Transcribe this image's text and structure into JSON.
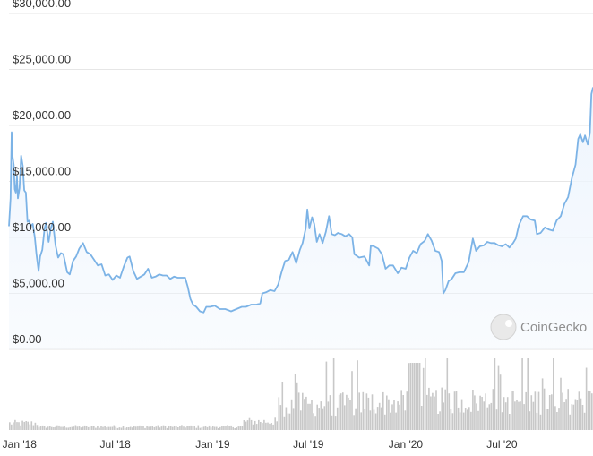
{
  "chart_data": {
    "type": "area",
    "title": "",
    "xlabel": "",
    "ylabel": "",
    "x_tick_labels": [
      "Jan '18",
      "Jul '18",
      "Jan '19",
      "Jul '19",
      "Jan '20",
      "Jul '20"
    ],
    "y_tick_labels": [
      "$0.00",
      "$5,000.00",
      "$10,000.00",
      "$15,000.00",
      "$20,000.00",
      "$25,000.00",
      "$30,000.00"
    ],
    "y_ticks": [
      0,
      5000,
      10000,
      15000,
      20000,
      25000,
      30000
    ],
    "ylim": [
      0,
      30000
    ],
    "xlim": [
      "2017-12-12",
      "2020-12-20"
    ],
    "grid": true,
    "line_color": "#7cb3e6",
    "fill_color": "#eef5fd",
    "volume_color": "#c8c8c8",
    "price_series": {
      "x": [
        "2017-12-12",
        "2017-12-15",
        "2017-12-17",
        "2017-12-19",
        "2017-12-21",
        "2017-12-23",
        "2017-12-25",
        "2017-12-27",
        "2017-12-29",
        "2018-01-01",
        "2018-01-04",
        "2018-01-07",
        "2018-01-10",
        "2018-01-13",
        "2018-01-16",
        "2018-01-19",
        "2018-01-22",
        "2018-01-26",
        "2018-01-30",
        "2018-02-02",
        "2018-02-06",
        "2018-02-09",
        "2018-02-13",
        "2018-02-17",
        "2018-02-20",
        "2018-02-25",
        "2018-03-01",
        "2018-03-05",
        "2018-03-10",
        "2018-03-15",
        "2018-03-20",
        "2018-03-25",
        "2018-04-01",
        "2018-04-06",
        "2018-04-12",
        "2018-04-18",
        "2018-04-24",
        "2018-05-01",
        "2018-05-08",
        "2018-05-15",
        "2018-05-22",
        "2018-05-29",
        "2018-06-05",
        "2018-06-12",
        "2018-06-19",
        "2018-06-26",
        "2018-07-03",
        "2018-07-10",
        "2018-07-17",
        "2018-07-24",
        "2018-07-28",
        "2018-08-04",
        "2018-08-11",
        "2018-08-18",
        "2018-08-25",
        "2018-09-01",
        "2018-09-08",
        "2018-09-15",
        "2018-09-22",
        "2018-09-29",
        "2018-10-06",
        "2018-10-13",
        "2018-10-20",
        "2018-10-27",
        "2018-11-03",
        "2018-11-10",
        "2018-11-15",
        "2018-11-20",
        "2018-11-25",
        "2018-12-01",
        "2018-12-08",
        "2018-12-15",
        "2018-12-20",
        "2018-12-27",
        "2019-01-05",
        "2019-01-15",
        "2019-01-25",
        "2019-02-05",
        "2019-02-15",
        "2019-02-25",
        "2019-03-05",
        "2019-03-15",
        "2019-03-25",
        "2019-04-01",
        "2019-04-05",
        "2019-04-12",
        "2019-04-20",
        "2019-04-28",
        "2019-05-05",
        "2019-05-12",
        "2019-05-18",
        "2019-05-25",
        "2019-06-01",
        "2019-06-08",
        "2019-06-15",
        "2019-06-20",
        "2019-06-26",
        "2019-06-29",
        "2019-07-03",
        "2019-07-08",
        "2019-07-12",
        "2019-07-17",
        "2019-07-22",
        "2019-07-28",
        "2019-08-03",
        "2019-08-09",
        "2019-08-14",
        "2019-08-20",
        "2019-08-26",
        "2019-09-02",
        "2019-09-09",
        "2019-09-16",
        "2019-09-22",
        "2019-09-26",
        "2019-10-05",
        "2019-10-15",
        "2019-10-24",
        "2019-10-27",
        "2019-11-02",
        "2019-11-10",
        "2019-11-17",
        "2019-11-24",
        "2019-12-01",
        "2019-12-08",
        "2019-12-17",
        "2019-12-24",
        "2020-01-01",
        "2020-01-08",
        "2020-01-15",
        "2020-01-22",
        "2020-01-29",
        "2020-02-06",
        "2020-02-12",
        "2020-02-19",
        "2020-02-26",
        "2020-03-04",
        "2020-03-09",
        "2020-03-12",
        "2020-03-16",
        "2020-03-22",
        "2020-03-28",
        "2020-04-04",
        "2020-04-12",
        "2020-04-20",
        "2020-04-29",
        "2020-05-07",
        "2020-05-13",
        "2020-05-20",
        "2020-05-28",
        "2020-06-03",
        "2020-06-10",
        "2020-06-17",
        "2020-06-24",
        "2020-07-01",
        "2020-07-08",
        "2020-07-15",
        "2020-07-22",
        "2020-07-27",
        "2020-08-02",
        "2020-08-10",
        "2020-08-17",
        "2020-08-24",
        "2020-09-01",
        "2020-09-05",
        "2020-09-12",
        "2020-09-20",
        "2020-09-28",
        "2020-10-05",
        "2020-10-12",
        "2020-10-20",
        "2020-10-27",
        "2020-11-03",
        "2020-11-10",
        "2020-11-17",
        "2020-11-22",
        "2020-11-26",
        "2020-12-01",
        "2020-12-05",
        "2020-12-10",
        "2020-12-14",
        "2020-12-17",
        "2020-12-20"
      ],
      "y": [
        11000,
        13500,
        19400,
        17200,
        16500,
        14300,
        14000,
        15500,
        13500,
        14400,
        17300,
        16400,
        14200,
        14000,
        11400,
        11500,
        11000,
        11200,
        10000,
        8500,
        7000,
        8300,
        8900,
        10700,
        11300,
        9600,
        10800,
        11400,
        9300,
        8200,
        8600,
        8500,
        6900,
        6700,
        7900,
        8300,
        9000,
        9500,
        8700,
        8500,
        8000,
        7500,
        7600,
        6600,
        6700,
        6200,
        6600,
        6400,
        7400,
        8200,
        8300,
        7000,
        6300,
        6500,
        6700,
        7200,
        6400,
        6500,
        6700,
        6600,
        6600,
        6300,
        6500,
        6400,
        6400,
        6400,
        5600,
        4500,
        4000,
        3800,
        3400,
        3300,
        3800,
        3800,
        3900,
        3600,
        3600,
        3400,
        3600,
        3800,
        3800,
        4000,
        4000,
        4100,
        5000,
        5100,
        5300,
        5200,
        5800,
        7000,
        7900,
        8000,
        8700,
        7700,
        8900,
        9500,
        10800,
        12500,
        10800,
        11800,
        11200,
        9600,
        10300,
        9500,
        10500,
        11900,
        10300,
        10200,
        10400,
        10300,
        10100,
        10300,
        10000,
        8500,
        8200,
        8300,
        7500,
        9300,
        9200,
        9000,
        8500,
        7200,
        7500,
        7500,
        6800,
        7300,
        7200,
        8200,
        8800,
        8600,
        9400,
        9700,
        10300,
        9700,
        8800,
        8700,
        7900,
        5000,
        5300,
        6100,
        6300,
        6800,
        6900,
        6900,
        7800,
        9900,
        8800,
        9200,
        9300,
        9600,
        9500,
        9500,
        9300,
        9200,
        9400,
        9100,
        9500,
        9900,
        11100,
        11900,
        11900,
        11600,
        11500,
        10300,
        10400,
        10900,
        10700,
        10600,
        11500,
        11900,
        13000,
        13600,
        15300,
        16500,
        18800,
        19200,
        18500,
        19100,
        18300,
        19300,
        22800,
        23400
      ]
    },
    "volume_note": "daily trading volume bars shown beneath price chart"
  },
  "watermark": {
    "text": "CoinGecko"
  }
}
